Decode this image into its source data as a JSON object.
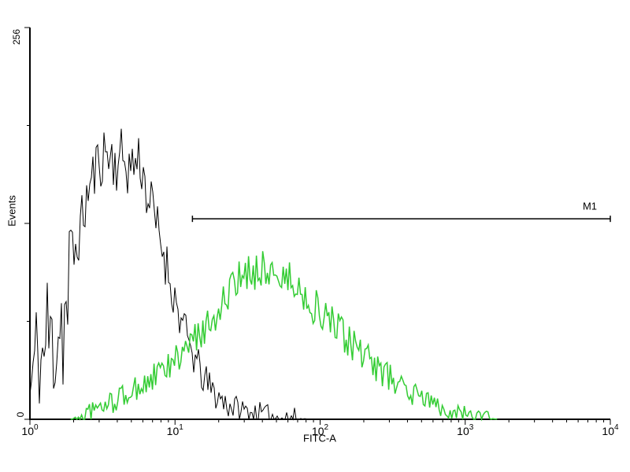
{
  "chart_data": {
    "type": "line",
    "title": "",
    "xlabel": "FITC-A",
    "ylabel": "Events",
    "x_scale": "log10",
    "xlim": [
      1,
      10000
    ],
    "ylim": [
      0,
      256
    ],
    "background": "#ffffff",
    "axis_color": "#000000",
    "x_tick_exponents": [
      0,
      1,
      2,
      3,
      4
    ],
    "y_axis_labels": {
      "max": "256",
      "min": "0"
    },
    "y_major_ticks": [
      0,
      128,
      256
    ],
    "y_minor_ticks": [
      64,
      192
    ],
    "grid": false,
    "legend": "none",
    "marker": {
      "label": "M1",
      "x_start_log": 1.12,
      "x_end_log": 4.0,
      "y_events": 131
    },
    "series": [
      {
        "name": "black",
        "color": "#000000",
        "width": 1,
        "noise": 20,
        "spike_until": 0.3,
        "seed": 11,
        "points": [
          [
            0,
            20
          ],
          [
            0.04,
            55
          ],
          [
            0.08,
            45
          ],
          [
            0.12,
            70
          ],
          [
            0.16,
            60
          ],
          [
            0.2,
            85
          ],
          [
            0.24,
            80
          ],
          [
            0.28,
            100
          ],
          [
            0.32,
            112
          ],
          [
            0.36,
            130
          ],
          [
            0.4,
            148
          ],
          [
            0.44,
            160
          ],
          [
            0.48,
            170
          ],
          [
            0.52,
            175
          ],
          [
            0.56,
            171
          ],
          [
            0.6,
            167
          ],
          [
            0.64,
            172
          ],
          [
            0.68,
            164
          ],
          [
            0.72,
            168
          ],
          [
            0.76,
            171
          ],
          [
            0.8,
            150
          ],
          [
            0.84,
            138
          ],
          [
            0.88,
            124
          ],
          [
            0.92,
            110
          ],
          [
            0.96,
            94
          ],
          [
            1,
            78
          ],
          [
            1.05,
            62
          ],
          [
            1.1,
            48
          ],
          [
            1.15,
            36
          ],
          [
            1.2,
            26
          ],
          [
            1.28,
            16
          ],
          [
            1.36,
            10
          ],
          [
            1.45,
            6
          ],
          [
            1.55,
            4
          ],
          [
            1.65,
            2
          ],
          [
            1.8,
            1
          ],
          [
            1.95,
            0
          ],
          [
            2.05,
            0
          ]
        ]
      },
      {
        "name": "green",
        "color": "#33cc33",
        "width": 1.5,
        "noise": 14,
        "spike_until": null,
        "seed": 97,
        "points": [
          [
            0.28,
            0
          ],
          [
            0.35,
            2
          ],
          [
            0.42,
            5
          ],
          [
            0.5,
            8
          ],
          [
            0.58,
            12
          ],
          [
            0.66,
            16
          ],
          [
            0.74,
            20
          ],
          [
            0.82,
            25
          ],
          [
            0.9,
            30
          ],
          [
            0.98,
            36
          ],
          [
            1.06,
            44
          ],
          [
            1.14,
            52
          ],
          [
            1.22,
            62
          ],
          [
            1.3,
            72
          ],
          [
            1.38,
            82
          ],
          [
            1.46,
            92
          ],
          [
            1.54,
            98
          ],
          [
            1.6,
            100
          ],
          [
            1.66,
            97
          ],
          [
            1.74,
            93
          ],
          [
            1.82,
            88
          ],
          [
            1.9,
            80
          ],
          [
            1.98,
            72
          ],
          [
            2.06,
            64
          ],
          [
            2.14,
            56
          ],
          [
            2.24,
            47
          ],
          [
            2.34,
            38
          ],
          [
            2.44,
            30
          ],
          [
            2.54,
            23
          ],
          [
            2.64,
            17
          ],
          [
            2.74,
            12
          ],
          [
            2.84,
            8
          ],
          [
            2.94,
            5
          ],
          [
            3.04,
            2
          ],
          [
            3.14,
            1
          ],
          [
            3.22,
            0
          ]
        ]
      }
    ]
  }
}
